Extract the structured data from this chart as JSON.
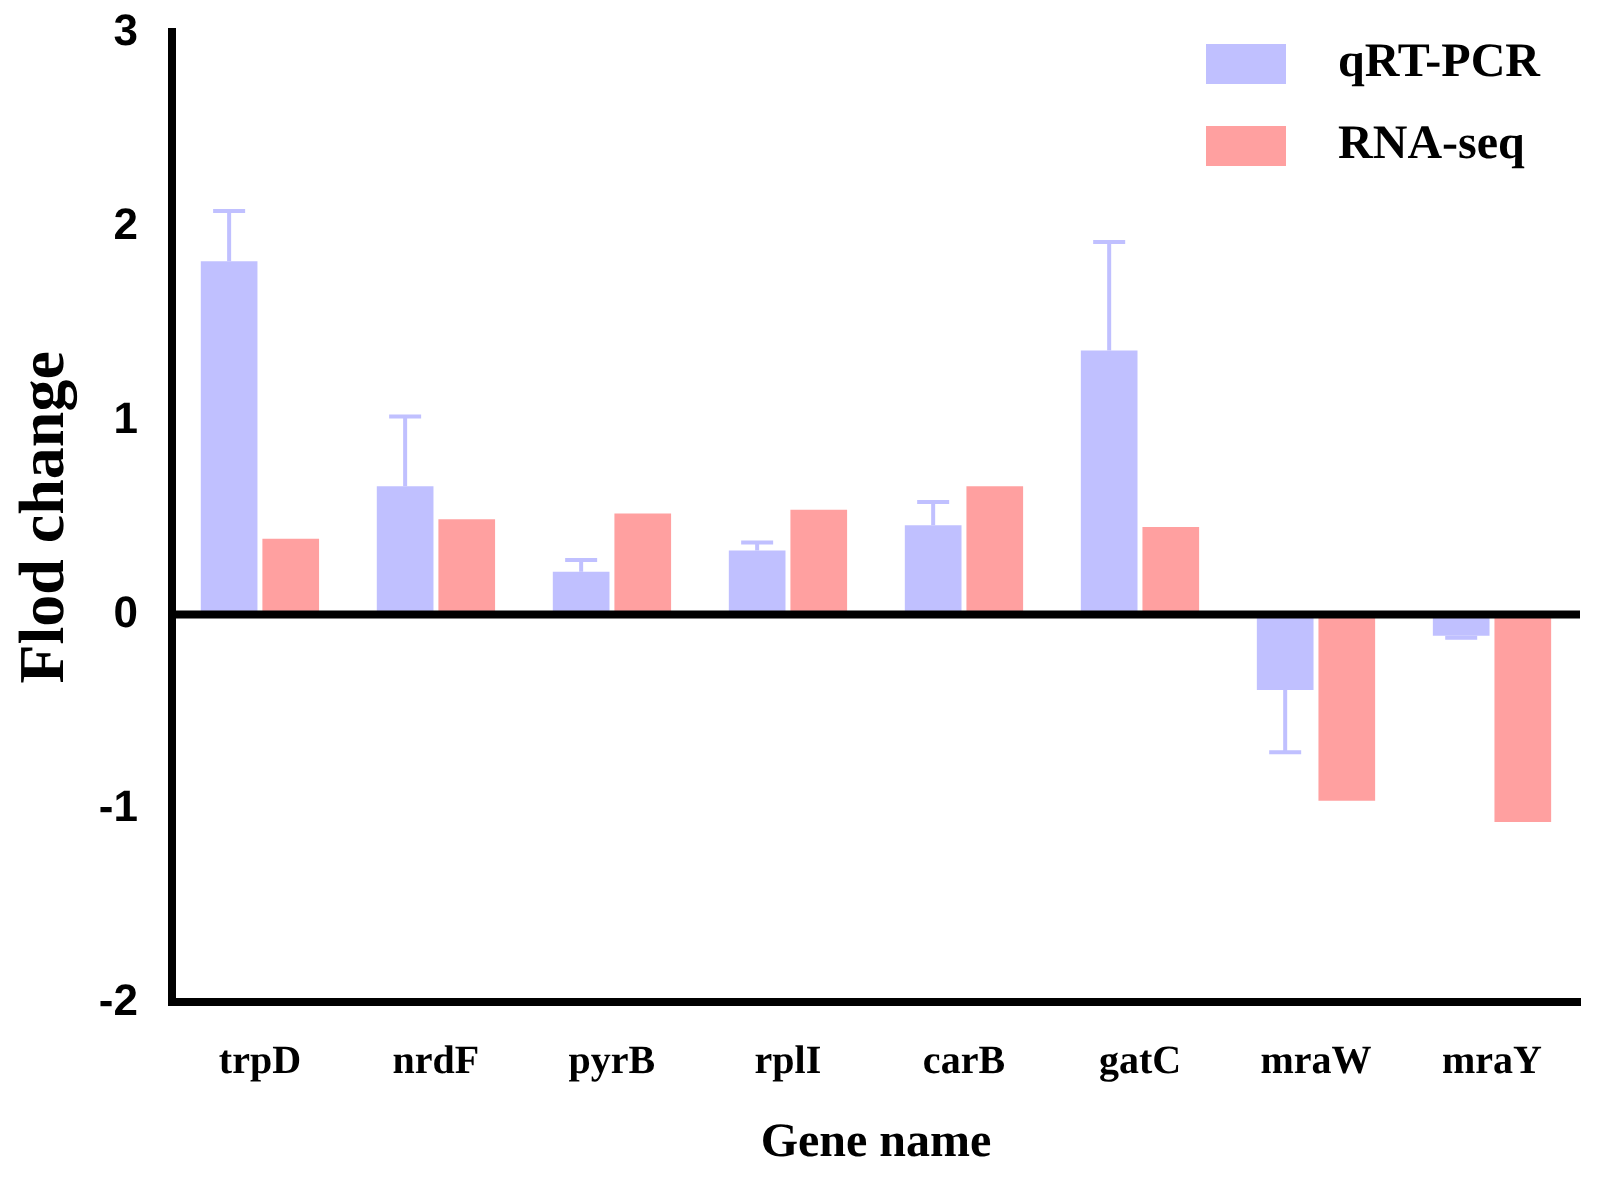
{
  "chart_data": {
    "type": "bar",
    "xlabel": "Gene name",
    "ylabel": "Flod change",
    "categories": [
      "trpD",
      "nrdF",
      "pyrB",
      "rplI",
      "carB",
      "gatC",
      "mraW",
      "mraY"
    ],
    "series": [
      {
        "name": "qRT-PCR",
        "color": "#c0c0ff",
        "values": [
          1.82,
          0.66,
          0.22,
          0.33,
          0.46,
          1.36,
          -0.39,
          -0.11
        ],
        "errors": [
          [
            1.82,
            2.08
          ],
          [
            0.66,
            1.02
          ],
          [
            0.22,
            0.28
          ],
          [
            0.33,
            0.37
          ],
          [
            0.46,
            0.58
          ],
          [
            1.36,
            1.92
          ],
          [
            -0.71,
            -0.39
          ],
          [
            -0.12,
            -0.11
          ]
        ]
      },
      {
        "name": "RNA-seq",
        "color": "#ffa0a0",
        "values": [
          0.39,
          0.49,
          0.52,
          0.54,
          0.66,
          0.45,
          -0.96,
          -1.07
        ]
      }
    ],
    "ylim": [
      -2,
      3
    ],
    "yticks": [
      -2,
      -1,
      0,
      1,
      2,
      3
    ],
    "ref_lines": [
      {
        "axis": "y",
        "value": 0,
        "color": "#000000"
      }
    ],
    "legend": "top right"
  }
}
